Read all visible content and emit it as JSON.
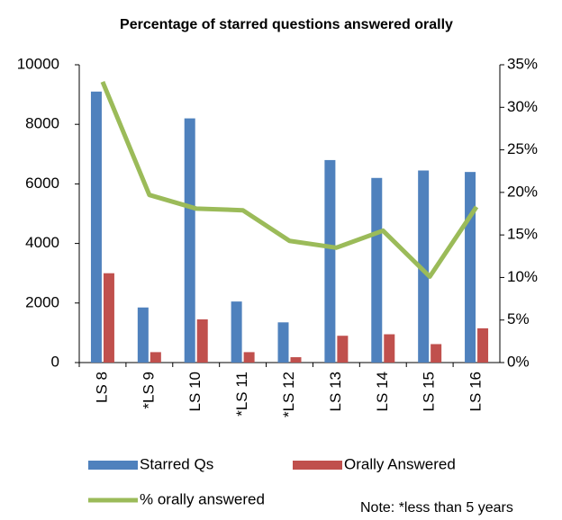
{
  "chart_data": {
    "type": "bar",
    "title": "Percentage of starred questions answered orally",
    "categories": [
      "LS 8",
      "*LS 9",
      "LS 10",
      "*LS 11",
      "*LS 12",
      "LS 13",
      "LS 14",
      "LS 15",
      "LS 16"
    ],
    "series": [
      {
        "name": "Starred Qs",
        "color": "#4f81bd",
        "type": "bar",
        "values": [
          9100,
          1850,
          8200,
          2050,
          1350,
          6800,
          6200,
          6450,
          6400
        ]
      },
      {
        "name": "Orally Answered",
        "color": "#c0504d",
        "type": "bar",
        "values": [
          3000,
          350,
          1450,
          350,
          180,
          900,
          950,
          620,
          1150
        ]
      },
      {
        "name": "% orally answered",
        "color": "#9bbb59",
        "type": "line",
        "axis": "y2",
        "values": [
          33,
          19.7,
          18.1,
          17.9,
          14.3,
          13.5,
          15.5,
          10.1,
          18.3
        ]
      }
    ],
    "ylim": [
      0,
      10000
    ],
    "yticks": [
      0,
      2000,
      4000,
      6000,
      8000,
      10000
    ],
    "y2lim": [
      0,
      35
    ],
    "y2ticks": [
      {
        "value": 0,
        "label": "0%"
      },
      {
        "value": 5,
        "label": "5%"
      },
      {
        "value": 10,
        "label": "10%"
      },
      {
        "value": 15,
        "label": "15%"
      },
      {
        "value": 20,
        "label": "20%"
      },
      {
        "value": 25,
        "label": "25%"
      },
      {
        "value": 30,
        "label": "30%"
      },
      {
        "value": 35,
        "label": "35%"
      }
    ],
    "annotation": "Note: *less than 5 years"
  }
}
